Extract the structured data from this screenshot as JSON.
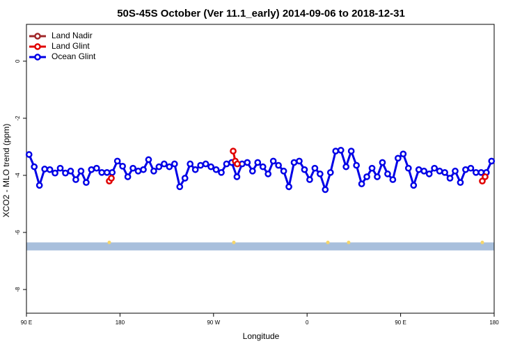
{
  "chart_data": {
    "type": "line",
    "title": "50S-45S October (Ver 11.1_early)   2014-09-06 to 2018-12-31",
    "x_label": "Longitude",
    "y_label": "XCO2 - MLO trend (ppm)",
    "xlim": [
      90,
      540
    ],
    "xticks": [
      {
        "value": 90,
        "label": "90 E"
      },
      180,
      {
        "value": 270,
        "label": "90 W"
      },
      {
        "value": 360,
        "label": "0"
      },
      {
        "value": 450,
        "label": "90 E"
      },
      {
        "value": 540,
        "label": "180"
      }
    ],
    "ylim": [
      -8.83,
      1.29
    ],
    "yticks": [
      0,
      -2,
      -4,
      -6,
      -8
    ],
    "legend": "top-left",
    "band": {
      "range": [
        -6.35,
        -6.63
      ],
      "color": "#a8bfdc",
      "marker_color": "#f5d66b",
      "markers": [
        169.7,
        289.5,
        380,
        400,
        528.6
      ]
    },
    "series": [
      {
        "name": "Land Nadir",
        "color": "#a0282a",
        "x": [
          289.5
        ],
        "values": [
          -3.55
        ]
      },
      {
        "name": "Land Glint",
        "color": "#e00000",
        "x": [
          169.7,
          171.7,
          null,
          288.9,
          290.9,
          292.9,
          null,
          528.6,
          531.3
        ],
        "values": [
          -4.2,
          -4.1,
          null,
          -3.15,
          -3.5,
          -3.6,
          null,
          -4.2,
          -4.05
        ]
      },
      {
        "name": "Ocean Glint",
        "color": "#0000e6",
        "x": [
          92.5,
          97.5,
          102.5,
          107.5,
          112.5,
          117.5,
          122.5,
          127.5,
          132.5,
          137.5,
          142.5,
          147.5,
          152.5,
          157.5,
          162.5,
          167.5,
          172.5,
          177.5,
          182.5,
          187.5,
          192.5,
          197.5,
          202.5,
          207.5,
          212.5,
          217.5,
          222.5,
          227.5,
          232.5,
          237.5,
          242.5,
          247.5,
          252.5,
          257.5,
          262.5,
          267.5,
          272.5,
          277.5,
          282.5,
          287.5,
          292.5,
          297.5,
          302.5,
          307.5,
          312.5,
          317.5,
          322.5,
          327.5,
          332.5,
          337.5,
          342.5,
          347.5,
          352.5,
          357.5,
          362.5,
          367.5,
          372.5,
          377.5,
          382.5,
          387.5,
          392.5,
          397.5,
          402.5,
          407.5,
          412.5,
          417.5,
          422.5,
          427.5,
          432.5,
          437.5,
          442.5,
          447.5,
          452.5,
          457.5,
          462.5,
          467.5,
          472.5,
          477.5,
          482.5,
          487.5,
          492.5,
          497.5,
          502.5,
          507.5,
          512.5,
          517.5,
          522.5,
          527.5,
          532.5,
          537.5
        ],
        "values": [
          -3.27,
          -3.7,
          -4.35,
          -3.78,
          -3.8,
          -3.92,
          -3.75,
          -3.92,
          -3.85,
          -4.15,
          -3.85,
          -4.25,
          -3.8,
          -3.75,
          -3.9,
          -3.9,
          -3.9,
          -3.5,
          -3.68,
          -4.05,
          -3.75,
          -3.85,
          -3.8,
          -3.45,
          -3.85,
          -3.7,
          -3.6,
          -3.7,
          -3.6,
          -4.4,
          -4.1,
          -3.6,
          -3.8,
          -3.65,
          -3.6,
          -3.7,
          -3.8,
          -3.9,
          -3.6,
          -3.55,
          -4.05,
          -3.6,
          -3.55,
          -3.85,
          -3.55,
          -3.7,
          -3.95,
          -3.5,
          -3.65,
          -3.85,
          -4.4,
          -3.55,
          -3.5,
          -3.8,
          -4.15,
          -3.75,
          -3.95,
          -4.5,
          -3.9,
          -3.15,
          -3.12,
          -3.7,
          -3.15,
          -3.65,
          -4.3,
          -4.05,
          -3.75,
          -4.05,
          -3.55,
          -3.95,
          -4.15,
          -3.4,
          -3.25,
          -3.75,
          -4.35,
          -3.8,
          -3.85,
          -3.95,
          -3.75,
          -3.85,
          -3.9,
          -4.1,
          -3.85,
          -4.25,
          -3.8,
          -3.75,
          -3.9,
          -3.9,
          -3.9,
          -3.5
        ]
      }
    ]
  }
}
